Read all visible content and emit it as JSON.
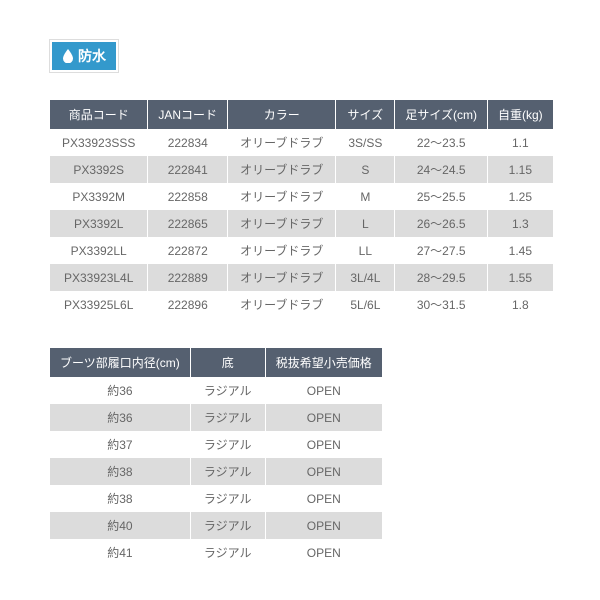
{
  "badge": {
    "label": "防水"
  },
  "table1": {
    "headers": [
      "商品コード",
      "JANコード",
      "カラー",
      "サイズ",
      "足サイズ(cm)",
      "自重(kg)"
    ],
    "rows": [
      [
        "PX33923SSS",
        "222834",
        "オリーブドラブ",
        "3S/SS",
        "22～23.5",
        "1.1"
      ],
      [
        "PX3392S",
        "222841",
        "オリーブドラブ",
        "S",
        "24～24.5",
        "1.15"
      ],
      [
        "PX3392M",
        "222858",
        "オリーブドラブ",
        "M",
        "25～25.5",
        "1.25"
      ],
      [
        "PX3392L",
        "222865",
        "オリーブドラブ",
        "L",
        "26～26.5",
        "1.3"
      ],
      [
        "PX3392LL",
        "222872",
        "オリーブドラブ",
        "LL",
        "27～27.5",
        "1.45"
      ],
      [
        "PX33923L4L",
        "222889",
        "オリーブドラブ",
        "3L/4L",
        "28～29.5",
        "1.55"
      ],
      [
        "PX33925L6L",
        "222896",
        "オリーブドラブ",
        "5L/6L",
        "30～31.5",
        "1.8"
      ]
    ]
  },
  "table2": {
    "headers": [
      "ブーツ部履口内径(cm)",
      "底",
      "税抜希望小売価格"
    ],
    "rows": [
      [
        "約36",
        "ラジアル",
        "OPEN"
      ],
      [
        "約36",
        "ラジアル",
        "OPEN"
      ],
      [
        "約37",
        "ラジアル",
        "OPEN"
      ],
      [
        "約38",
        "ラジアル",
        "OPEN"
      ],
      [
        "約38",
        "ラジアル",
        "OPEN"
      ],
      [
        "約40",
        "ラジアル",
        "OPEN"
      ],
      [
        "約41",
        "ラジアル",
        "OPEN"
      ]
    ]
  },
  "colors": {
    "header_bg": "#556070",
    "header_fg": "#ffffff",
    "row_odd": "#ffffff",
    "row_even": "#dcdcdc",
    "text": "#666666",
    "badge_bg": "#3399cc"
  }
}
